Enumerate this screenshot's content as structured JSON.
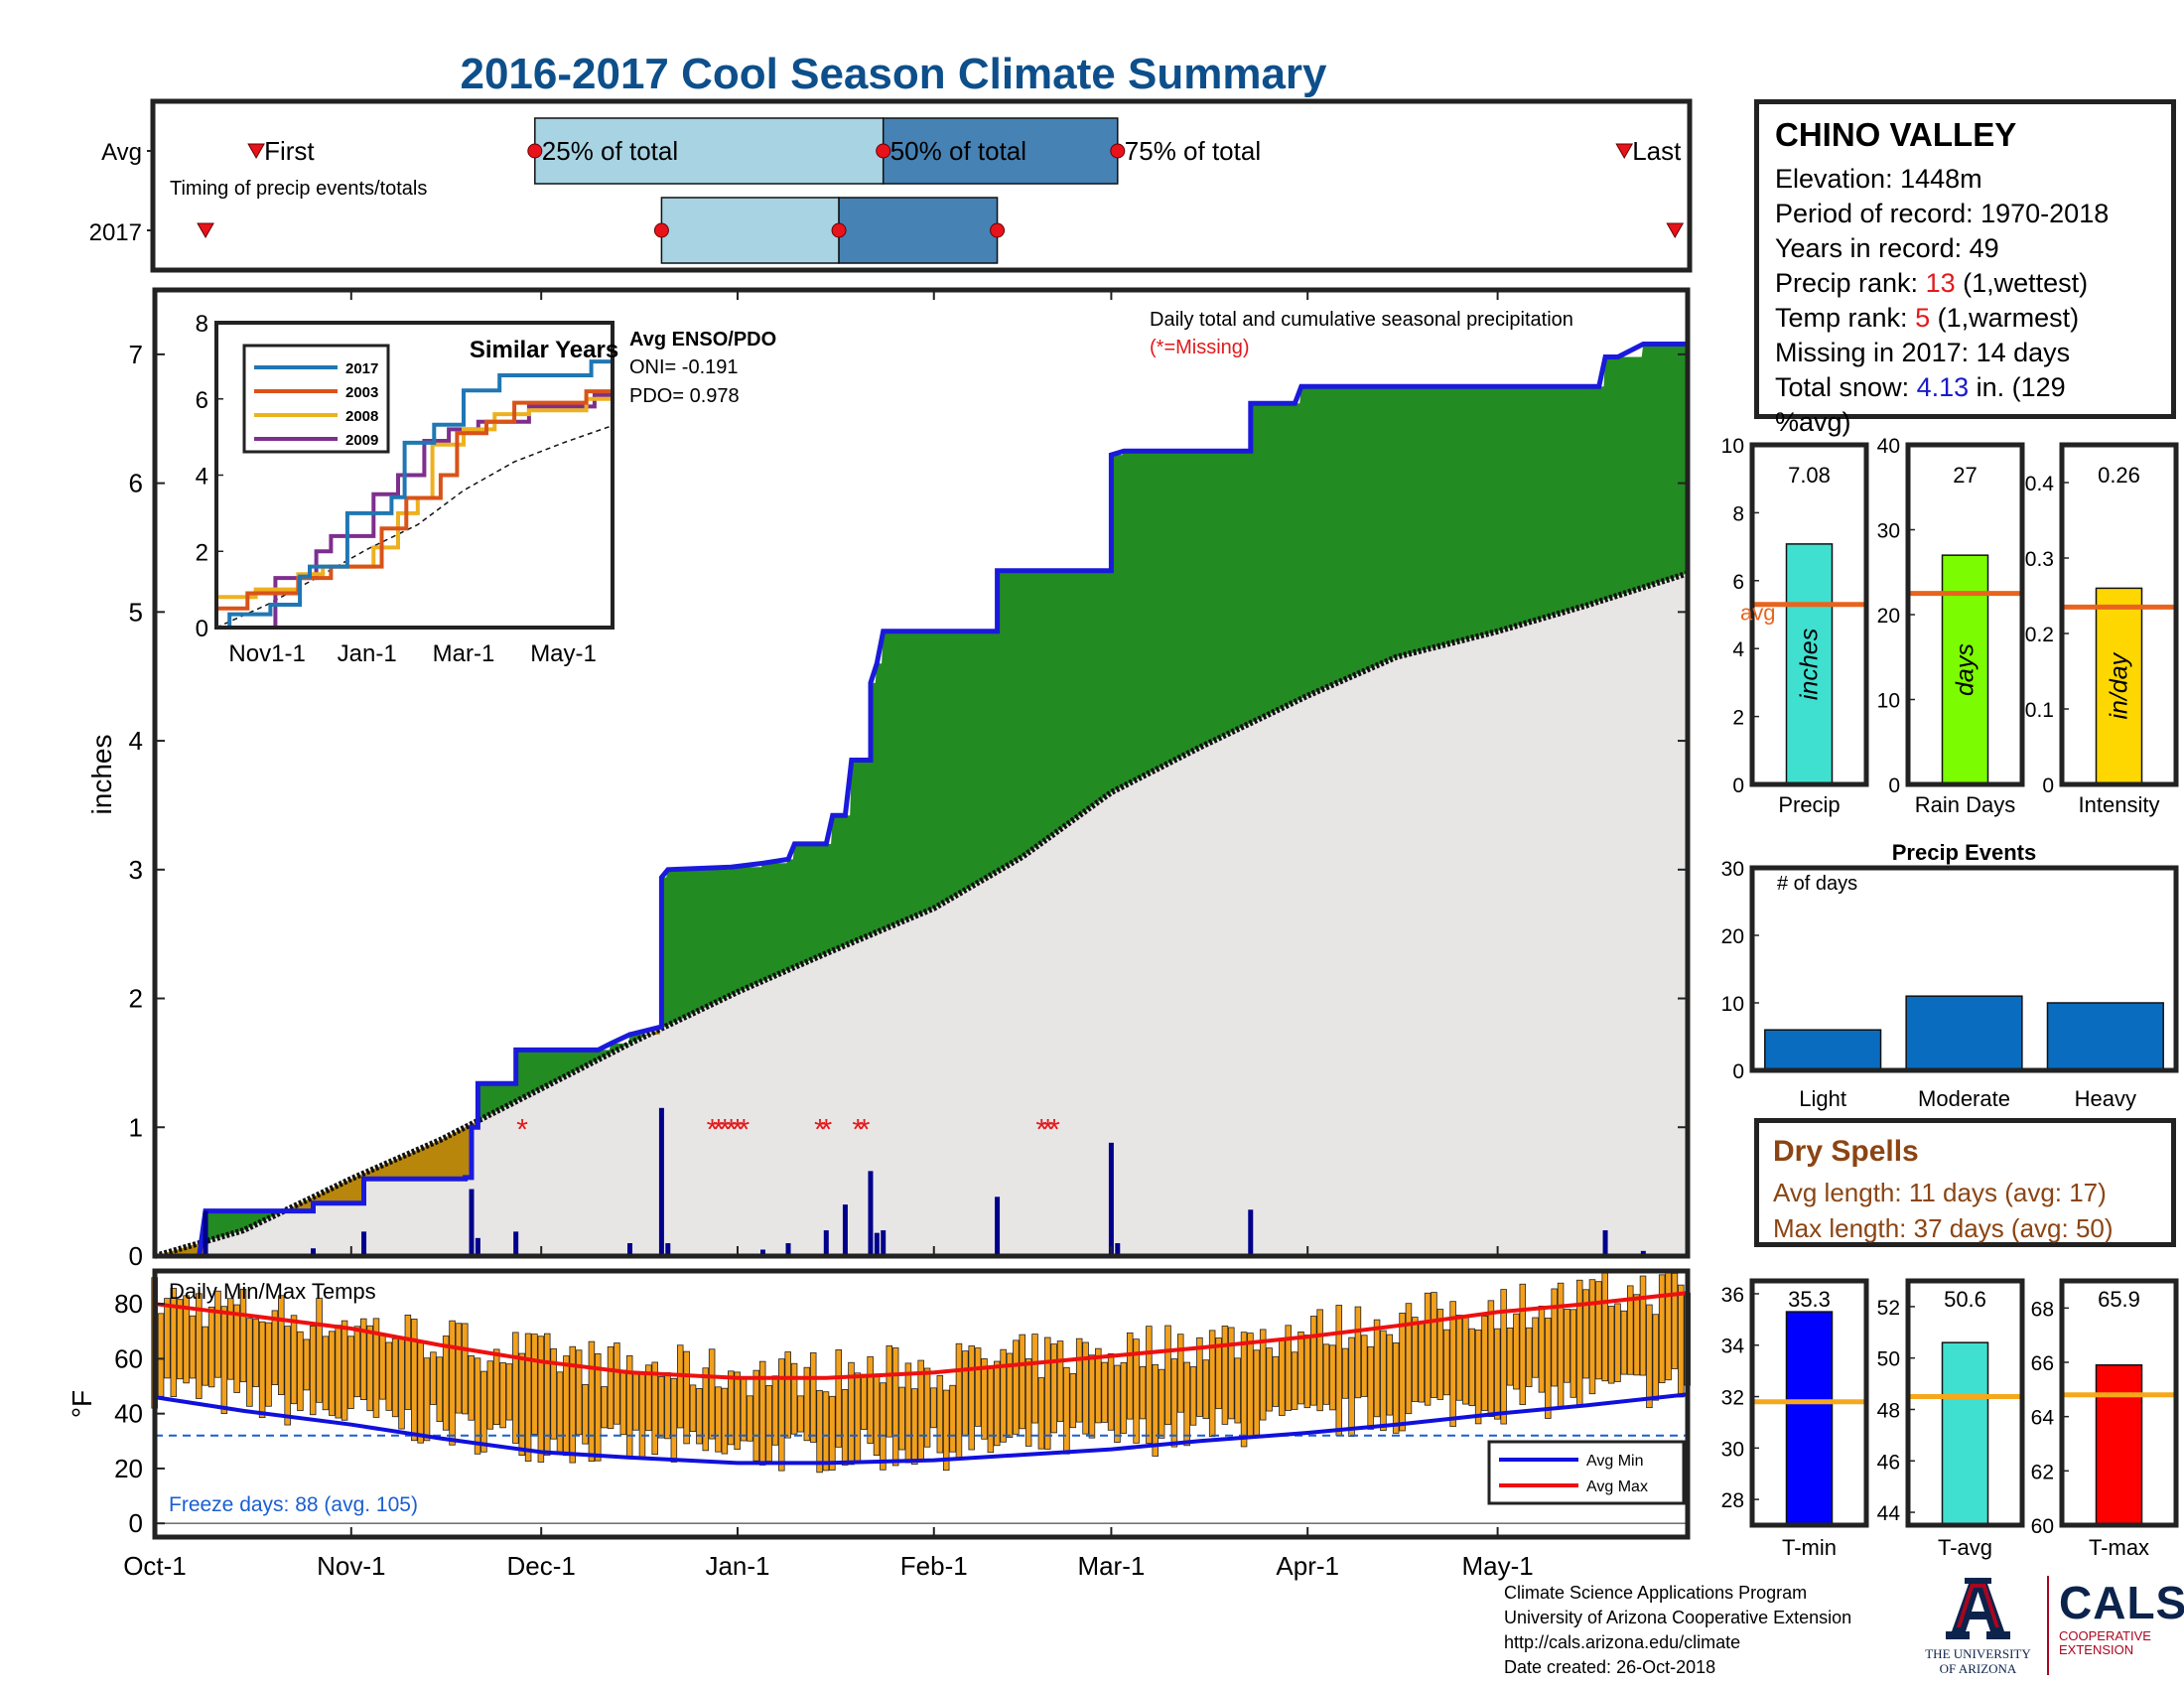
{
  "page_title": "2016-2017 Cool Season Climate Summary",
  "colors": {
    "title": "#0d4f8b",
    "cumulative_line": "#1a1adc",
    "excess": "#228b22",
    "deficit": "#b8860b",
    "avg_fill": "#e8e6e5",
    "daily_bar": "#00008b",
    "missing": "#e3191c",
    "avg_line": "#e8641e",
    "temp_bar": "#f2a01c",
    "avg_min": "#1010dd",
    "avg_max": "#ee1010"
  },
  "station": {
    "name": "CHINO VALLEY",
    "elevation": "Elevation: 1448m",
    "period": "Period of record: 1970-2018",
    "years": "Years in record: 49",
    "precip_rank_label": "Precip rank: ",
    "precip_rank_value": "13",
    "precip_rank_note": " (1,wettest)",
    "temp_rank_label": "Temp rank: ",
    "temp_rank_value": "5",
    "temp_rank_note": " (1,warmest)",
    "missing": "Missing in 2017: 14 days",
    "snow_label": "Total snow: ",
    "snow_value": "4.13",
    "snow_note": " in. (129",
    "snow_note2": "%avg)"
  },
  "dry_spells": {
    "title": "Dry Spells",
    "avg_length": "Avg length: 11 days (avg: 17)",
    "max_length": "Max length: 37 days (avg: 50)"
  },
  "footer": {
    "line1": "Climate Science Applications Program",
    "line2": "University of Arizona Cooperative Extension",
    "line3": "http://cals.arizona.edu/climate",
    "line4": " Date created: 26-Oct-2018"
  },
  "logos": {
    "ua_caption1": "THE UNIVERSITY",
    "ua_caption2": "OF ARIZONA",
    "cals": "CALS",
    "cals_sub1": "COOPERATIVE",
    "cals_sub2": "EXTENSION"
  },
  "chart_data": [
    {
      "id": "timing",
      "type": "box-timeline",
      "row_labels": [
        "Avg",
        "2017"
      ],
      "caption": "Timing of precip events/totals",
      "labels": {
        "first": "First",
        "p25": "25% of total",
        "p50": "50% of total",
        "p75": "75% of total",
        "last": "Last"
      },
      "avg": {
        "first": "2016-10-17",
        "p25": "2016-11-30",
        "p50": "2017-01-24",
        "p75": "2017-03-02",
        "last": "2017-05-21"
      },
      "y2017": {
        "first": "2016-10-09",
        "p25": "2016-12-20",
        "p50": "2017-01-17",
        "p75": "2017-02-11",
        "last": "2017-05-29"
      }
    },
    {
      "id": "main_precip",
      "type": "area",
      "ylabel": "inches",
      "ylim": [
        0,
        7.5
      ],
      "yticks": [
        0,
        1,
        2,
        3,
        4,
        5,
        6,
        7
      ],
      "x_range": [
        "2016-10-01",
        "2017-05-31"
      ],
      "xticks": [
        "Oct-1",
        "Nov-1",
        "Dec-1",
        "Jan-1",
        "Feb-1",
        "Mar-1",
        "Apr-1",
        "May-1"
      ],
      "title_note": "Daily total and cumulative seasonal precipitation",
      "missing_note": "(*=Missing)",
      "cumulative_2017": [
        [
          "2016-10-01",
          0
        ],
        [
          "2016-10-08",
          0
        ],
        [
          "2016-10-09",
          0.35
        ],
        [
          "2016-10-26",
          0.35
        ],
        [
          "2016-10-26",
          0.41
        ],
        [
          "2016-11-03",
          0.41
        ],
        [
          "2016-11-03",
          0.6
        ],
        [
          "2016-11-19",
          0.6
        ],
        [
          "2016-11-19",
          0.61
        ],
        [
          "2016-11-20",
          0.61
        ],
        [
          "2016-11-20",
          1.0
        ],
        [
          "2016-11-21",
          1.0
        ],
        [
          "2016-11-21",
          1.34
        ],
        [
          "2016-11-27",
          1.34
        ],
        [
          "2016-11-27",
          1.6
        ],
        [
          "2016-12-10",
          1.6
        ],
        [
          "2016-12-12",
          1.65
        ],
        [
          "2016-12-15",
          1.72
        ],
        [
          "2016-12-20",
          1.78
        ],
        [
          "2016-12-20",
          2.94
        ],
        [
          "2016-12-21",
          3.0
        ],
        [
          "2016-12-31",
          3.02
        ],
        [
          "2017-01-05",
          3.05
        ],
        [
          "2017-01-09",
          3.08
        ],
        [
          "2017-01-10",
          3.2
        ],
        [
          "2017-01-15",
          3.2
        ],
        [
          "2017-01-16",
          3.42
        ],
        [
          "2017-01-18",
          3.42
        ],
        [
          "2017-01-19",
          3.85
        ],
        [
          "2017-01-22",
          3.85
        ],
        [
          "2017-01-22",
          4.45
        ],
        [
          "2017-01-23",
          4.6
        ],
        [
          "2017-01-24",
          4.85
        ],
        [
          "2017-02-11",
          4.85
        ],
        [
          "2017-02-11",
          5.32
        ],
        [
          "2017-03-01",
          5.32
        ],
        [
          "2017-03-01",
          6.22
        ],
        [
          "2017-03-03",
          6.25
        ],
        [
          "2017-03-23",
          6.25
        ],
        [
          "2017-03-23",
          6.62
        ],
        [
          "2017-03-30",
          6.62
        ],
        [
          "2017-03-31",
          6.75
        ],
        [
          "2017-05-17",
          6.75
        ],
        [
          "2017-05-18",
          6.98
        ],
        [
          "2017-05-20",
          6.98
        ],
        [
          "2017-05-24",
          7.08
        ],
        [
          "2017-05-31",
          7.08
        ]
      ],
      "cumulative_avg": [
        [
          "2016-10-01",
          0
        ],
        [
          "2016-10-15",
          0.2
        ],
        [
          "2016-11-01",
          0.6
        ],
        [
          "2016-11-15",
          0.9
        ],
        [
          "2016-12-01",
          1.3
        ],
        [
          "2016-12-15",
          1.65
        ],
        [
          "2017-01-01",
          2.05
        ],
        [
          "2017-01-15",
          2.35
        ],
        [
          "2017-02-01",
          2.7
        ],
        [
          "2017-02-15",
          3.1
        ],
        [
          "2017-03-01",
          3.6
        ],
        [
          "2017-03-15",
          3.95
        ],
        [
          "2017-04-01",
          4.35
        ],
        [
          "2017-04-15",
          4.65
        ],
        [
          "2017-05-01",
          4.85
        ],
        [
          "2017-05-15",
          5.05
        ],
        [
          "2017-05-31",
          5.3
        ]
      ],
      "daily_2017": [
        [
          "2016-10-09",
          0.35
        ],
        [
          "2016-10-26",
          0.06
        ],
        [
          "2016-11-03",
          0.19
        ],
        [
          "2016-11-20",
          0.52
        ],
        [
          "2016-11-21",
          0.14
        ],
        [
          "2016-11-27",
          0.19
        ],
        [
          "2016-12-15",
          0.1
        ],
        [
          "2016-12-20",
          1.15
        ],
        [
          "2016-12-21",
          0.1
        ],
        [
          "2017-01-05",
          0.05
        ],
        [
          "2017-01-09",
          0.1
        ],
        [
          "2017-01-15",
          0.2
        ],
        [
          "2017-01-18",
          0.4
        ],
        [
          "2017-01-22",
          0.66
        ],
        [
          "2017-01-23",
          0.18
        ],
        [
          "2017-01-24",
          0.2
        ],
        [
          "2017-02-11",
          0.46
        ],
        [
          "2017-03-01",
          0.88
        ],
        [
          "2017-03-02",
          0.1
        ],
        [
          "2017-03-23",
          0.36
        ],
        [
          "2017-05-18",
          0.2
        ],
        [
          "2017-05-24",
          0.04
        ]
      ],
      "missing_days": [
        "2016-11-28",
        "2016-12-28",
        "2016-12-29",
        "2016-12-30",
        "2016-12-31",
        "2017-01-01",
        "2017-01-02",
        "2017-01-14",
        "2017-01-15",
        "2017-01-20",
        "2017-01-21",
        "2017-02-18",
        "2017-02-19",
        "2017-02-20"
      ]
    },
    {
      "id": "similar_years",
      "type": "line",
      "title": "Similar Years",
      "ylim": [
        0,
        8
      ],
      "yticks": [
        0,
        2,
        4,
        6,
        8
      ],
      "xticks": [
        "Nov1-1",
        "Jan-1",
        "Mar-1",
        "May-1"
      ],
      "x_range": [
        "2016-10-01",
        "2017-05-31"
      ],
      "series": [
        {
          "name": "2017",
          "color": "#1f77b4",
          "points": [
            [
              "2016-10-01",
              0
            ],
            [
              "2016-10-09",
              0.35
            ],
            [
              "2016-11-03",
              0.6
            ],
            [
              "2016-11-21",
              1.34
            ],
            [
              "2016-11-27",
              1.6
            ],
            [
              "2016-12-20",
              3.0
            ],
            [
              "2017-01-16",
              3.42
            ],
            [
              "2017-01-24",
              4.85
            ],
            [
              "2017-02-11",
              5.32
            ],
            [
              "2017-03-01",
              6.22
            ],
            [
              "2017-03-23",
              6.62
            ],
            [
              "2017-05-18",
              6.98
            ],
            [
              "2017-05-31",
              7.08
            ]
          ]
        },
        {
          "name": "2003",
          "color": "#d95319",
          "points": [
            [
              "2016-10-01",
              0.5
            ],
            [
              "2016-10-20",
              0.9
            ],
            [
              "2016-11-20",
              1.3
            ],
            [
              "2016-12-10",
              1.6
            ],
            [
              "2017-01-10",
              2.6
            ],
            [
              "2017-01-25",
              3.4
            ],
            [
              "2017-02-15",
              4.0
            ],
            [
              "2017-02-25",
              5.1
            ],
            [
              "2017-03-15",
              5.4
            ],
            [
              "2017-04-01",
              5.9
            ],
            [
              "2017-05-15",
              6.2
            ],
            [
              "2017-05-31",
              6.6
            ]
          ]
        },
        {
          "name": "2008",
          "color": "#edb120",
          "points": [
            [
              "2016-10-01",
              0.8
            ],
            [
              "2016-10-25",
              1.0
            ],
            [
              "2016-11-20",
              1.4
            ],
            [
              "2016-12-05",
              1.6
            ],
            [
              "2017-01-05",
              2.1
            ],
            [
              "2017-01-20",
              3.0
            ],
            [
              "2017-02-01",
              3.4
            ],
            [
              "2017-02-10",
              4.8
            ],
            [
              "2017-03-01",
              5.2
            ],
            [
              "2017-03-20",
              5.6
            ],
            [
              "2017-04-10",
              5.7
            ],
            [
              "2017-05-15",
              6.0
            ],
            [
              "2017-05-31",
              6.9
            ]
          ]
        },
        {
          "name": "2009",
          "color": "#7e2f8e",
          "points": [
            [
              "2016-10-01",
              0
            ],
            [
              "2016-11-05",
              0
            ],
            [
              "2016-11-06",
              1.3
            ],
            [
              "2016-12-01",
              2.0
            ],
            [
              "2016-12-10",
              2.4
            ],
            [
              "2017-01-05",
              3.5
            ],
            [
              "2017-01-20",
              4.0
            ],
            [
              "2017-02-05",
              4.9
            ],
            [
              "2017-02-20",
              5.2
            ],
            [
              "2017-03-10",
              5.4
            ],
            [
              "2017-04-10",
              5.8
            ],
            [
              "2017-05-20",
              6.1
            ],
            [
              "2017-05-31",
              6.3
            ]
          ]
        }
      ],
      "avg": [
        [
          "2016-10-01",
          0
        ],
        [
          "2016-11-01",
          0.6
        ],
        [
          "2016-12-01",
          1.3
        ],
        [
          "2017-01-01",
          2.05
        ],
        [
          "2017-02-01",
          2.7
        ],
        [
          "2017-03-01",
          3.6
        ],
        [
          "2017-04-01",
          4.35
        ],
        [
          "2017-05-01",
          4.85
        ],
        [
          "2017-05-31",
          5.3
        ]
      ],
      "enso_title": "Avg ENSO/PDO",
      "oni": "ONI= -0.191",
      "pdo": "PDO= 0.978"
    },
    {
      "id": "totals",
      "type": "bar",
      "panels": [
        {
          "xlabel": "Precip",
          "value": 7.08,
          "value_label": "7.08",
          "avg": 5.3,
          "avg_label": "avg",
          "unit": "inches",
          "color": "#40e0d0",
          "ylim": [
            0,
            10
          ],
          "yticks": [
            0,
            2,
            4,
            6,
            8,
            10
          ]
        },
        {
          "xlabel": "Rain Days",
          "value": 27,
          "value_label": "27",
          "avg": 22.5,
          "unit": "days",
          "color": "#7cfc00",
          "ylim": [
            0,
            40
          ],
          "yticks": [
            0,
            10,
            20,
            30,
            40
          ]
        },
        {
          "xlabel": "Intensity",
          "value": 0.26,
          "value_label": "0.26",
          "avg": 0.235,
          "unit": "in/day",
          "color": "#ffd700",
          "ylim": [
            0,
            0.45
          ],
          "yticks": [
            0,
            0.1,
            0.2,
            0.3,
            0.4
          ]
        }
      ]
    },
    {
      "id": "precip_events",
      "type": "bar",
      "title": "Precip Events",
      "ylabel": "# of days",
      "categories": [
        "Light",
        "Moderate",
        "Heavy"
      ],
      "values": [
        6,
        11,
        10
      ],
      "ylim": [
        0,
        30
      ],
      "yticks": [
        0,
        10,
        20,
        30
      ]
    },
    {
      "id": "temps",
      "type": "bar",
      "title": "Daily Min/Max Temps",
      "ylabel": "°F",
      "ylim": [
        -5,
        92
      ],
      "yticks": [
        0,
        20,
        40,
        60,
        80
      ],
      "freeze_line": 32,
      "freeze_note": "Freeze days: 88 (avg. 105)",
      "legend": [
        "Avg Min",
        "Avg Max"
      ],
      "avg_min": [
        [
          "2016-10-01",
          46
        ],
        [
          "2016-10-15",
          41
        ],
        [
          "2016-11-01",
          36
        ],
        [
          "2016-11-15",
          31
        ],
        [
          "2016-12-01",
          26
        ],
        [
          "2016-12-15",
          24
        ],
        [
          "2017-01-01",
          22
        ],
        [
          "2017-01-15",
          22
        ],
        [
          "2017-02-01",
          23
        ],
        [
          "2017-02-15",
          25
        ],
        [
          "2017-03-01",
          27
        ],
        [
          "2017-03-15",
          30
        ],
        [
          "2017-04-01",
          33
        ],
        [
          "2017-04-15",
          36
        ],
        [
          "2017-05-01",
          40
        ],
        [
          "2017-05-15",
          43
        ],
        [
          "2017-05-31",
          47
        ]
      ],
      "avg_max": [
        [
          "2016-10-01",
          80
        ],
        [
          "2016-10-15",
          76
        ],
        [
          "2016-11-01",
          71
        ],
        [
          "2016-11-15",
          65
        ],
        [
          "2016-12-01",
          59
        ],
        [
          "2016-12-15",
          55
        ],
        [
          "2017-01-01",
          53
        ],
        [
          "2017-01-15",
          53
        ],
        [
          "2017-02-01",
          55
        ],
        [
          "2017-02-15",
          58
        ],
        [
          "2017-03-01",
          61
        ],
        [
          "2017-03-15",
          64
        ],
        [
          "2017-04-01",
          68
        ],
        [
          "2017-04-15",
          72
        ],
        [
          "2017-05-01",
          77
        ],
        [
          "2017-05-15",
          80
        ],
        [
          "2017-05-31",
          84
        ]
      ]
    },
    {
      "id": "temp_summary",
      "type": "bar",
      "panels": [
        {
          "xlabel": "T-min",
          "value": 35.3,
          "value_label": "35.3",
          "avg": 31.8,
          "color": "#0000ff",
          "ylim": [
            27,
            36.5
          ],
          "yticks": [
            28,
            30,
            32,
            34,
            36
          ]
        },
        {
          "xlabel": "T-avg",
          "value": 50.6,
          "value_label": "50.6",
          "avg": 48.5,
          "color": "#40e0d0",
          "ylim": [
            43.5,
            53
          ],
          "yticks": [
            44,
            46,
            48,
            50,
            52
          ]
        },
        {
          "xlabel": "T-max",
          "value": 65.9,
          "value_label": "65.9",
          "avg": 64.8,
          "color": "#ff0000",
          "ylim": [
            60,
            69
          ],
          "yticks": [
            60,
            62,
            64,
            66,
            68
          ]
        }
      ]
    }
  ]
}
